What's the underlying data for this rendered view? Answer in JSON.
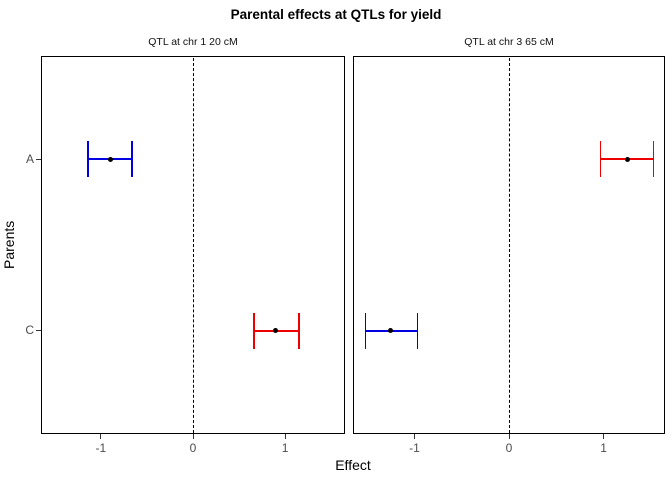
{
  "chart_data": {
    "type": "scatter",
    "subtype": "dot-with-error-bars",
    "title": "Parental effects at QTLs for yield",
    "xlabel": "Effect",
    "ylabel": "Parents",
    "categories": [
      "A",
      "C"
    ],
    "x_ticks": [
      -1,
      0,
      1
    ],
    "xlim": [
      -1.65,
      1.65
    ],
    "grid": "off",
    "legend": "none",
    "reference_line": {
      "x": 0,
      "style": "dashed",
      "color": "#000000"
    },
    "point_color": "#000000",
    "axis_text_color": "#4d4d4d",
    "panels": [
      {
        "label": "QTL at chr 1 20 cM",
        "points": [
          {
            "parent": "A",
            "estimate": -0.9,
            "ci_low": -1.14,
            "ci_high": -0.66,
            "color": "#0000E0"
          },
          {
            "parent": "C",
            "estimate": 0.9,
            "ci_low": 0.66,
            "ci_high": 1.15,
            "color": "#EE0000"
          }
        ]
      },
      {
        "label": "QTL at chr 3 65 cM",
        "points": [
          {
            "parent": "A",
            "estimate": 1.25,
            "ci_low": 0.97,
            "ci_high": 1.53,
            "color": "#EE0000"
          },
          {
            "parent": "C",
            "estimate": -1.25,
            "ci_low": -1.52,
            "ci_high": -0.97,
            "color": "#0000E0"
          }
        ]
      }
    ]
  }
}
